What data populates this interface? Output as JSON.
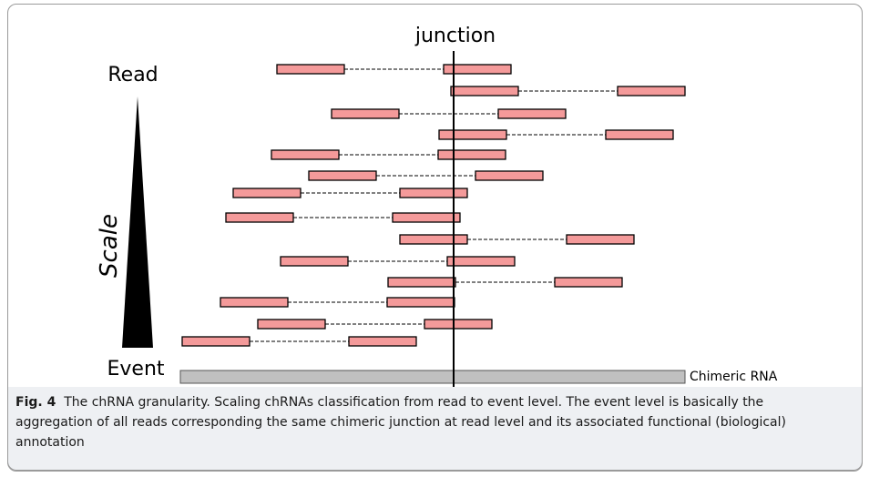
{
  "diagram": {
    "junction_label": "junction",
    "read_label": "Read",
    "event_label": "Event",
    "scale_label": "Scale",
    "chimeric_label": "Chimeric RNA",
    "read_fill_color": "#f49a9a",
    "event_bar_color": "#c0c0c0"
  },
  "caption": {
    "fig_label": "Fig. 4",
    "text": "The chRNA granularity. Scaling chRNAs classification from read to event level. The event level is basically the aggregation of all reads corresponding the same chimeric junction at read level and its associated functional (biological) annotation"
  }
}
